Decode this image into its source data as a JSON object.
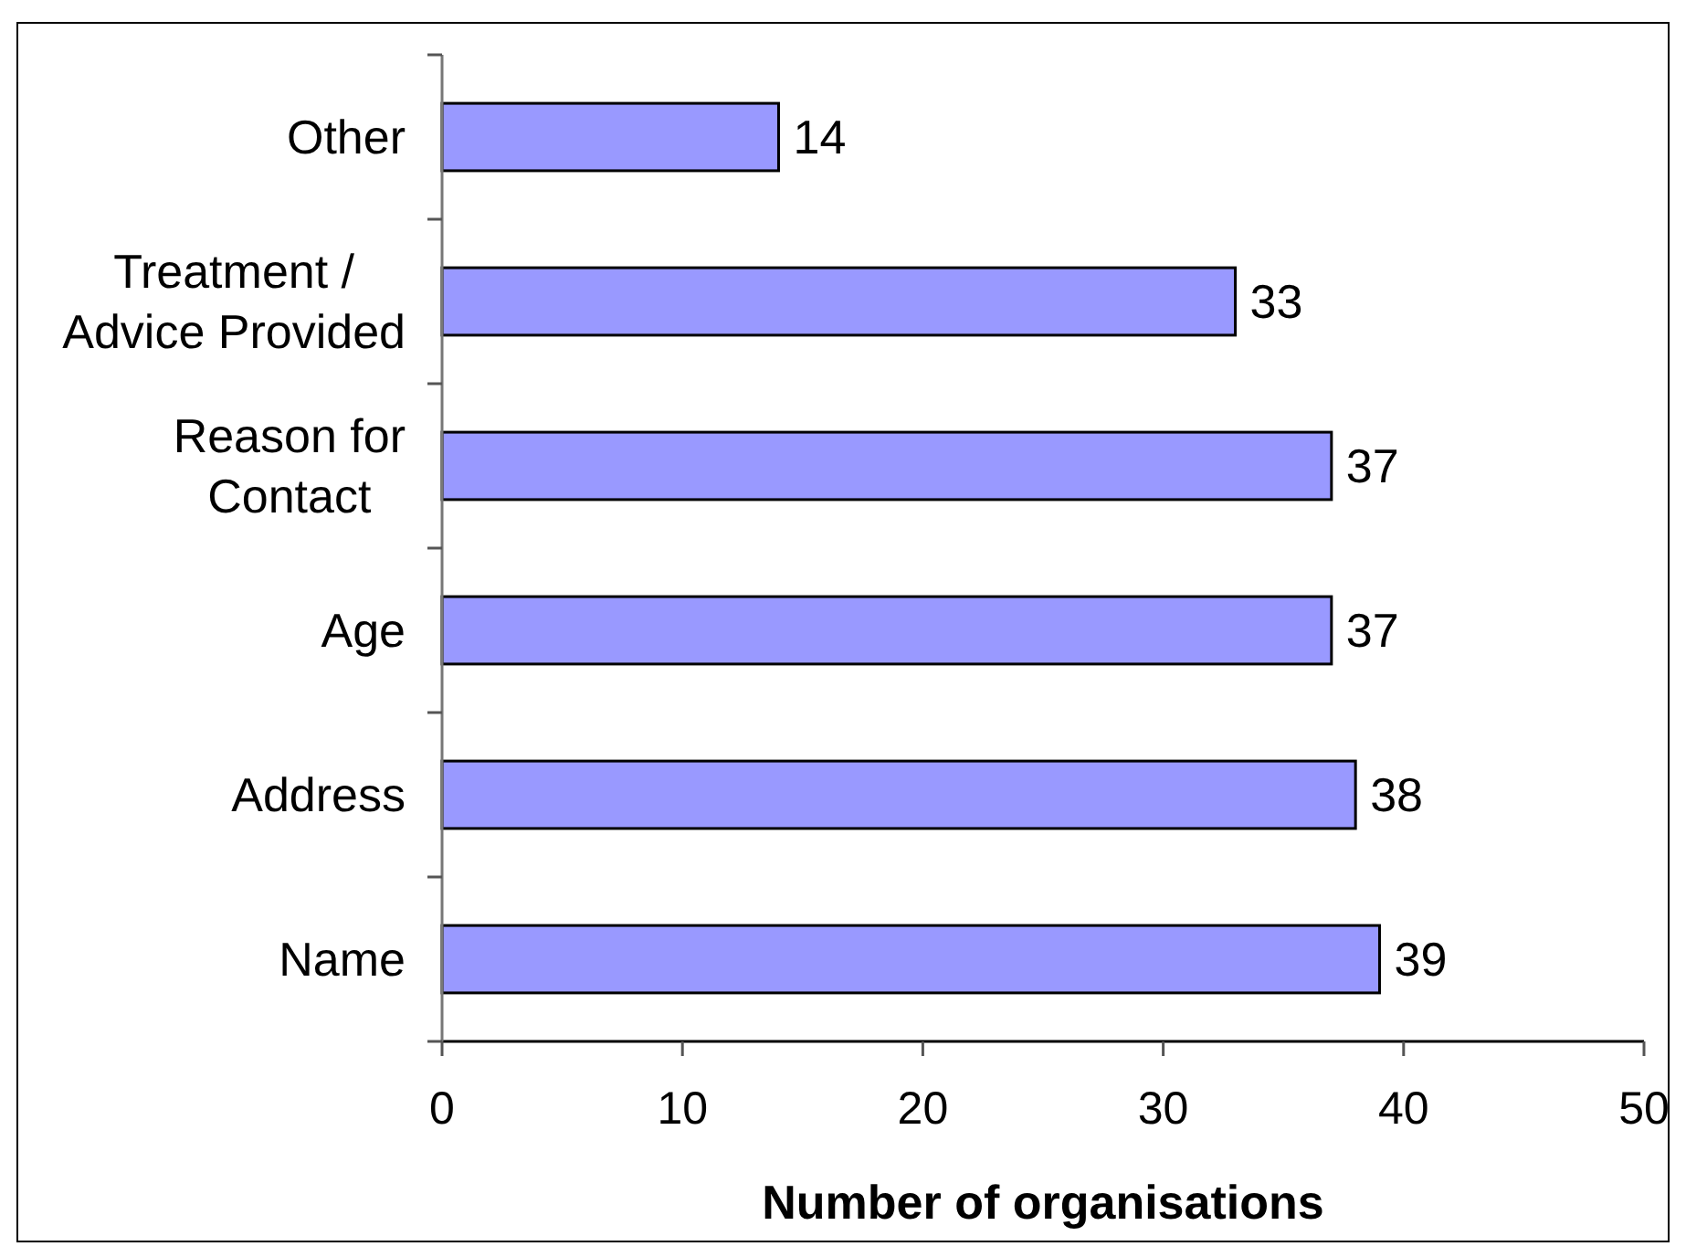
{
  "chart_data": {
    "type": "bar",
    "orientation": "horizontal",
    "categories": [
      "Other",
      "Treatment / Advice Provided",
      "Reason for Contact",
      "Age",
      "Address",
      "Name"
    ],
    "values": [
      14,
      33,
      37,
      37,
      38,
      39
    ],
    "color": "#9999ff",
    "xlim": [
      0,
      50
    ],
    "xticks": [
      0,
      10,
      20,
      30,
      40,
      50
    ],
    "xlabel": "Number of organisations",
    "data_labels": true
  }
}
